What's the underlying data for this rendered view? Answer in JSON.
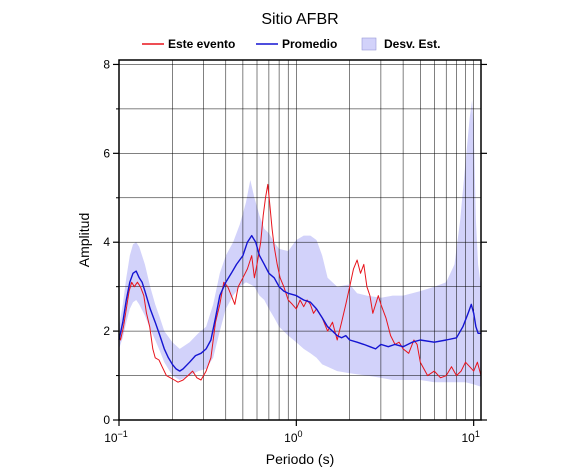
{
  "chart_data": {
    "type": "line",
    "title": "Sitio AFBR",
    "xlabel": "Periodo (s)",
    "ylabel": "Amplitud",
    "xscale": "log",
    "xlim": [
      0.1,
      11.0
    ],
    "ylim": [
      0,
      8.1
    ],
    "grid": true,
    "legend_position": "top",
    "x_ticks": [
      {
        "value": 0.1,
        "base": "10",
        "exp": "−1"
      },
      {
        "value": 1,
        "base": "10",
        "exp": "0"
      },
      {
        "value": 10,
        "base": "10",
        "exp": "1"
      }
    ],
    "y_ticks": [
      0,
      2,
      4,
      6,
      8
    ],
    "series": [
      {
        "name": "Este evento",
        "kind": "line",
        "color": "#e8141c",
        "points": [
          [
            0.1,
            1.9
          ],
          [
            0.102,
            1.8
          ],
          [
            0.106,
            2.1
          ],
          [
            0.11,
            2.5
          ],
          [
            0.114,
            2.9
          ],
          [
            0.118,
            3.1
          ],
          [
            0.122,
            3.0
          ],
          [
            0.127,
            3.1
          ],
          [
            0.132,
            3.0
          ],
          [
            0.138,
            2.8
          ],
          [
            0.143,
            2.4
          ],
          [
            0.149,
            2.1
          ],
          [
            0.155,
            1.6
          ],
          [
            0.16,
            1.4
          ],
          [
            0.168,
            1.35
          ],
          [
            0.175,
            1.2
          ],
          [
            0.185,
            1.0
          ],
          [
            0.195,
            0.95
          ],
          [
            0.205,
            0.9
          ],
          [
            0.215,
            0.85
          ],
          [
            0.23,
            0.9
          ],
          [
            0.245,
            1.0
          ],
          [
            0.26,
            1.1
          ],
          [
            0.275,
            0.95
          ],
          [
            0.29,
            0.9
          ],
          [
            0.31,
            1.1
          ],
          [
            0.33,
            1.4
          ],
          [
            0.35,
            2.2
          ],
          [
            0.37,
            2.6
          ],
          [
            0.39,
            3.1
          ],
          [
            0.41,
            3.0
          ],
          [
            0.43,
            2.8
          ],
          [
            0.45,
            2.6
          ],
          [
            0.47,
            3.0
          ],
          [
            0.5,
            3.2
          ],
          [
            0.53,
            3.4
          ],
          [
            0.56,
            3.7
          ],
          [
            0.58,
            3.2
          ],
          [
            0.6,
            3.5
          ],
          [
            0.63,
            4.0
          ],
          [
            0.65,
            4.6
          ],
          [
            0.67,
            5.0
          ],
          [
            0.69,
            5.3
          ],
          [
            0.71,
            4.8
          ],
          [
            0.73,
            4.3
          ],
          [
            0.75,
            3.9
          ],
          [
            0.78,
            3.5
          ],
          [
            0.81,
            3.2
          ],
          [
            0.85,
            3.0
          ],
          [
            0.9,
            2.7
          ],
          [
            0.95,
            2.6
          ],
          [
            1.0,
            2.5
          ],
          [
            1.05,
            2.7
          ],
          [
            1.1,
            2.55
          ],
          [
            1.15,
            2.7
          ],
          [
            1.2,
            2.6
          ],
          [
            1.25,
            2.4
          ],
          [
            1.3,
            2.5
          ],
          [
            1.4,
            2.3
          ],
          [
            1.5,
            2.0
          ],
          [
            1.6,
            2.2
          ],
          [
            1.7,
            1.8
          ],
          [
            1.8,
            2.2
          ],
          [
            1.9,
            2.6
          ],
          [
            2.0,
            3.0
          ],
          [
            2.1,
            3.4
          ],
          [
            2.2,
            3.6
          ],
          [
            2.3,
            3.3
          ],
          [
            2.4,
            3.5
          ],
          [
            2.5,
            3.0
          ],
          [
            2.6,
            2.8
          ],
          [
            2.7,
            2.4
          ],
          [
            2.8,
            2.6
          ],
          [
            2.9,
            2.8
          ],
          [
            3.0,
            2.6
          ],
          [
            3.2,
            2.3
          ],
          [
            3.4,
            1.9
          ],
          [
            3.6,
            1.7
          ],
          [
            3.8,
            1.75
          ],
          [
            4.0,
            1.6
          ],
          [
            4.3,
            1.5
          ],
          [
            4.6,
            1.8
          ],
          [
            4.8,
            1.7
          ],
          [
            5.0,
            1.3
          ],
          [
            5.5,
            1.0
          ],
          [
            6.0,
            1.1
          ],
          [
            6.5,
            0.95
          ],
          [
            7.0,
            1.0
          ],
          [
            7.5,
            1.2
          ],
          [
            8.0,
            1.0
          ],
          [
            8.5,
            1.1
          ],
          [
            9.0,
            1.3
          ],
          [
            9.5,
            1.2
          ],
          [
            10.0,
            1.1
          ],
          [
            10.5,
            1.3
          ],
          [
            11.0,
            1.0
          ]
        ]
      },
      {
        "name": "Promedio",
        "kind": "line",
        "color": "#1414d2",
        "points": [
          [
            0.1,
            1.8
          ],
          [
            0.105,
            2.2
          ],
          [
            0.11,
            2.7
          ],
          [
            0.115,
            3.1
          ],
          [
            0.12,
            3.3
          ],
          [
            0.125,
            3.35
          ],
          [
            0.13,
            3.2
          ],
          [
            0.135,
            3.1
          ],
          [
            0.14,
            2.9
          ],
          [
            0.15,
            2.5
          ],
          [
            0.16,
            2.2
          ],
          [
            0.17,
            1.9
          ],
          [
            0.18,
            1.6
          ],
          [
            0.19,
            1.4
          ],
          [
            0.2,
            1.25
          ],
          [
            0.21,
            1.15
          ],
          [
            0.22,
            1.1
          ],
          [
            0.23,
            1.15
          ],
          [
            0.25,
            1.3
          ],
          [
            0.27,
            1.45
          ],
          [
            0.29,
            1.5
          ],
          [
            0.31,
            1.6
          ],
          [
            0.33,
            1.8
          ],
          [
            0.35,
            2.3
          ],
          [
            0.37,
            2.8
          ],
          [
            0.4,
            3.1
          ],
          [
            0.43,
            3.3
          ],
          [
            0.46,
            3.5
          ],
          [
            0.5,
            3.7
          ],
          [
            0.53,
            4.0
          ],
          [
            0.56,
            4.15
          ],
          [
            0.59,
            4.0
          ],
          [
            0.62,
            3.7
          ],
          [
            0.66,
            3.5
          ],
          [
            0.7,
            3.3
          ],
          [
            0.75,
            3.2
          ],
          [
            0.8,
            3.0
          ],
          [
            0.85,
            2.9
          ],
          [
            0.9,
            2.85
          ],
          [
            1.0,
            2.8
          ],
          [
            1.1,
            2.7
          ],
          [
            1.2,
            2.65
          ],
          [
            1.3,
            2.5
          ],
          [
            1.4,
            2.3
          ],
          [
            1.5,
            2.1
          ],
          [
            1.6,
            2.0
          ],
          [
            1.7,
            1.9
          ],
          [
            1.8,
            1.85
          ],
          [
            1.9,
            1.9
          ],
          [
            2.0,
            1.8
          ],
          [
            2.2,
            1.75
          ],
          [
            2.4,
            1.7
          ],
          [
            2.6,
            1.65
          ],
          [
            2.8,
            1.6
          ],
          [
            3.0,
            1.7
          ],
          [
            3.3,
            1.65
          ],
          [
            3.6,
            1.7
          ],
          [
            4.0,
            1.65
          ],
          [
            4.5,
            1.75
          ],
          [
            5.0,
            1.8
          ],
          [
            6.0,
            1.75
          ],
          [
            7.0,
            1.8
          ],
          [
            8.0,
            1.85
          ],
          [
            8.7,
            2.1
          ],
          [
            9.3,
            2.4
          ],
          [
            9.7,
            2.6
          ],
          [
            10.0,
            2.4
          ],
          [
            10.3,
            2.1
          ],
          [
            10.6,
            1.95
          ],
          [
            11.0,
            1.95
          ]
        ]
      },
      {
        "name": "Desv. Est.",
        "kind": "band",
        "color": "#d2d2fa",
        "upper": [
          [
            0.1,
            2.1
          ],
          [
            0.105,
            2.6
          ],
          [
            0.11,
            3.2
          ],
          [
            0.115,
            3.7
          ],
          [
            0.12,
            3.95
          ],
          [
            0.125,
            4.0
          ],
          [
            0.13,
            3.9
          ],
          [
            0.14,
            3.5
          ],
          [
            0.15,
            3.0
          ],
          [
            0.16,
            2.6
          ],
          [
            0.17,
            2.3
          ],
          [
            0.18,
            2.0
          ],
          [
            0.2,
            1.75
          ],
          [
            0.22,
            1.6
          ],
          [
            0.25,
            1.75
          ],
          [
            0.28,
            1.95
          ],
          [
            0.31,
            2.1
          ],
          [
            0.34,
            2.6
          ],
          [
            0.37,
            3.3
          ],
          [
            0.4,
            3.7
          ],
          [
            0.44,
            4.0
          ],
          [
            0.48,
            4.4
          ],
          [
            0.52,
            4.9
          ],
          [
            0.55,
            5.4
          ],
          [
            0.58,
            5.0
          ],
          [
            0.62,
            4.6
          ],
          [
            0.66,
            4.3
          ],
          [
            0.7,
            4.2
          ],
          [
            0.75,
            4.0
          ],
          [
            0.8,
            3.85
          ],
          [
            0.9,
            3.8
          ],
          [
            1.0,
            4.05
          ],
          [
            1.1,
            4.15
          ],
          [
            1.2,
            4.15
          ],
          [
            1.3,
            4.05
          ],
          [
            1.4,
            3.7
          ],
          [
            1.5,
            3.2
          ],
          [
            1.7,
            3.0
          ],
          [
            2.0,
            3.05
          ],
          [
            2.2,
            2.85
          ],
          [
            2.5,
            2.8
          ],
          [
            3.0,
            2.75
          ],
          [
            3.5,
            2.8
          ],
          [
            4.0,
            2.8
          ],
          [
            5.0,
            2.9
          ],
          [
            6.0,
            3.0
          ],
          [
            7.0,
            3.1
          ],
          [
            7.8,
            3.5
          ],
          [
            8.4,
            4.5
          ],
          [
            9.0,
            5.8
          ],
          [
            9.5,
            6.8
          ],
          [
            9.8,
            7.2
          ],
          [
            10.0,
            6.6
          ],
          [
            10.3,
            4.5
          ],
          [
            10.6,
            3.5
          ],
          [
            11.0,
            3.0
          ]
        ],
        "lower": [
          [
            0.1,
            1.6
          ],
          [
            0.105,
            1.85
          ],
          [
            0.11,
            2.2
          ],
          [
            0.115,
            2.5
          ],
          [
            0.12,
            2.65
          ],
          [
            0.125,
            2.7
          ],
          [
            0.13,
            2.6
          ],
          [
            0.14,
            2.35
          ],
          [
            0.15,
            2.05
          ],
          [
            0.16,
            1.8
          ],
          [
            0.17,
            1.55
          ],
          [
            0.18,
            1.3
          ],
          [
            0.2,
            1.0
          ],
          [
            0.22,
            0.9
          ],
          [
            0.25,
            1.0
          ],
          [
            0.28,
            1.1
          ],
          [
            0.31,
            1.15
          ],
          [
            0.34,
            1.4
          ],
          [
            0.37,
            2.0
          ],
          [
            0.4,
            2.5
          ],
          [
            0.44,
            2.8
          ],
          [
            0.48,
            3.0
          ],
          [
            0.52,
            3.1
          ],
          [
            0.55,
            3.05
          ],
          [
            0.58,
            3.0
          ],
          [
            0.62,
            2.8
          ],
          [
            0.66,
            2.7
          ],
          [
            0.7,
            2.5
          ],
          [
            0.75,
            2.3
          ],
          [
            0.8,
            2.1
          ],
          [
            0.9,
            1.9
          ],
          [
            1.0,
            1.75
          ],
          [
            1.1,
            1.6
          ],
          [
            1.2,
            1.5
          ],
          [
            1.3,
            1.4
          ],
          [
            1.4,
            1.25
          ],
          [
            1.5,
            1.2
          ],
          [
            1.7,
            1.1
          ],
          [
            2.0,
            1.05
          ],
          [
            2.5,
            1.0
          ],
          [
            3.0,
            0.95
          ],
          [
            3.5,
            0.9
          ],
          [
            4.0,
            0.9
          ],
          [
            5.0,
            0.9
          ],
          [
            6.0,
            0.85
          ],
          [
            7.0,
            0.85
          ],
          [
            8.0,
            0.85
          ],
          [
            9.0,
            0.85
          ],
          [
            10.0,
            0.8
          ],
          [
            11.0,
            0.75
          ]
        ]
      }
    ]
  }
}
